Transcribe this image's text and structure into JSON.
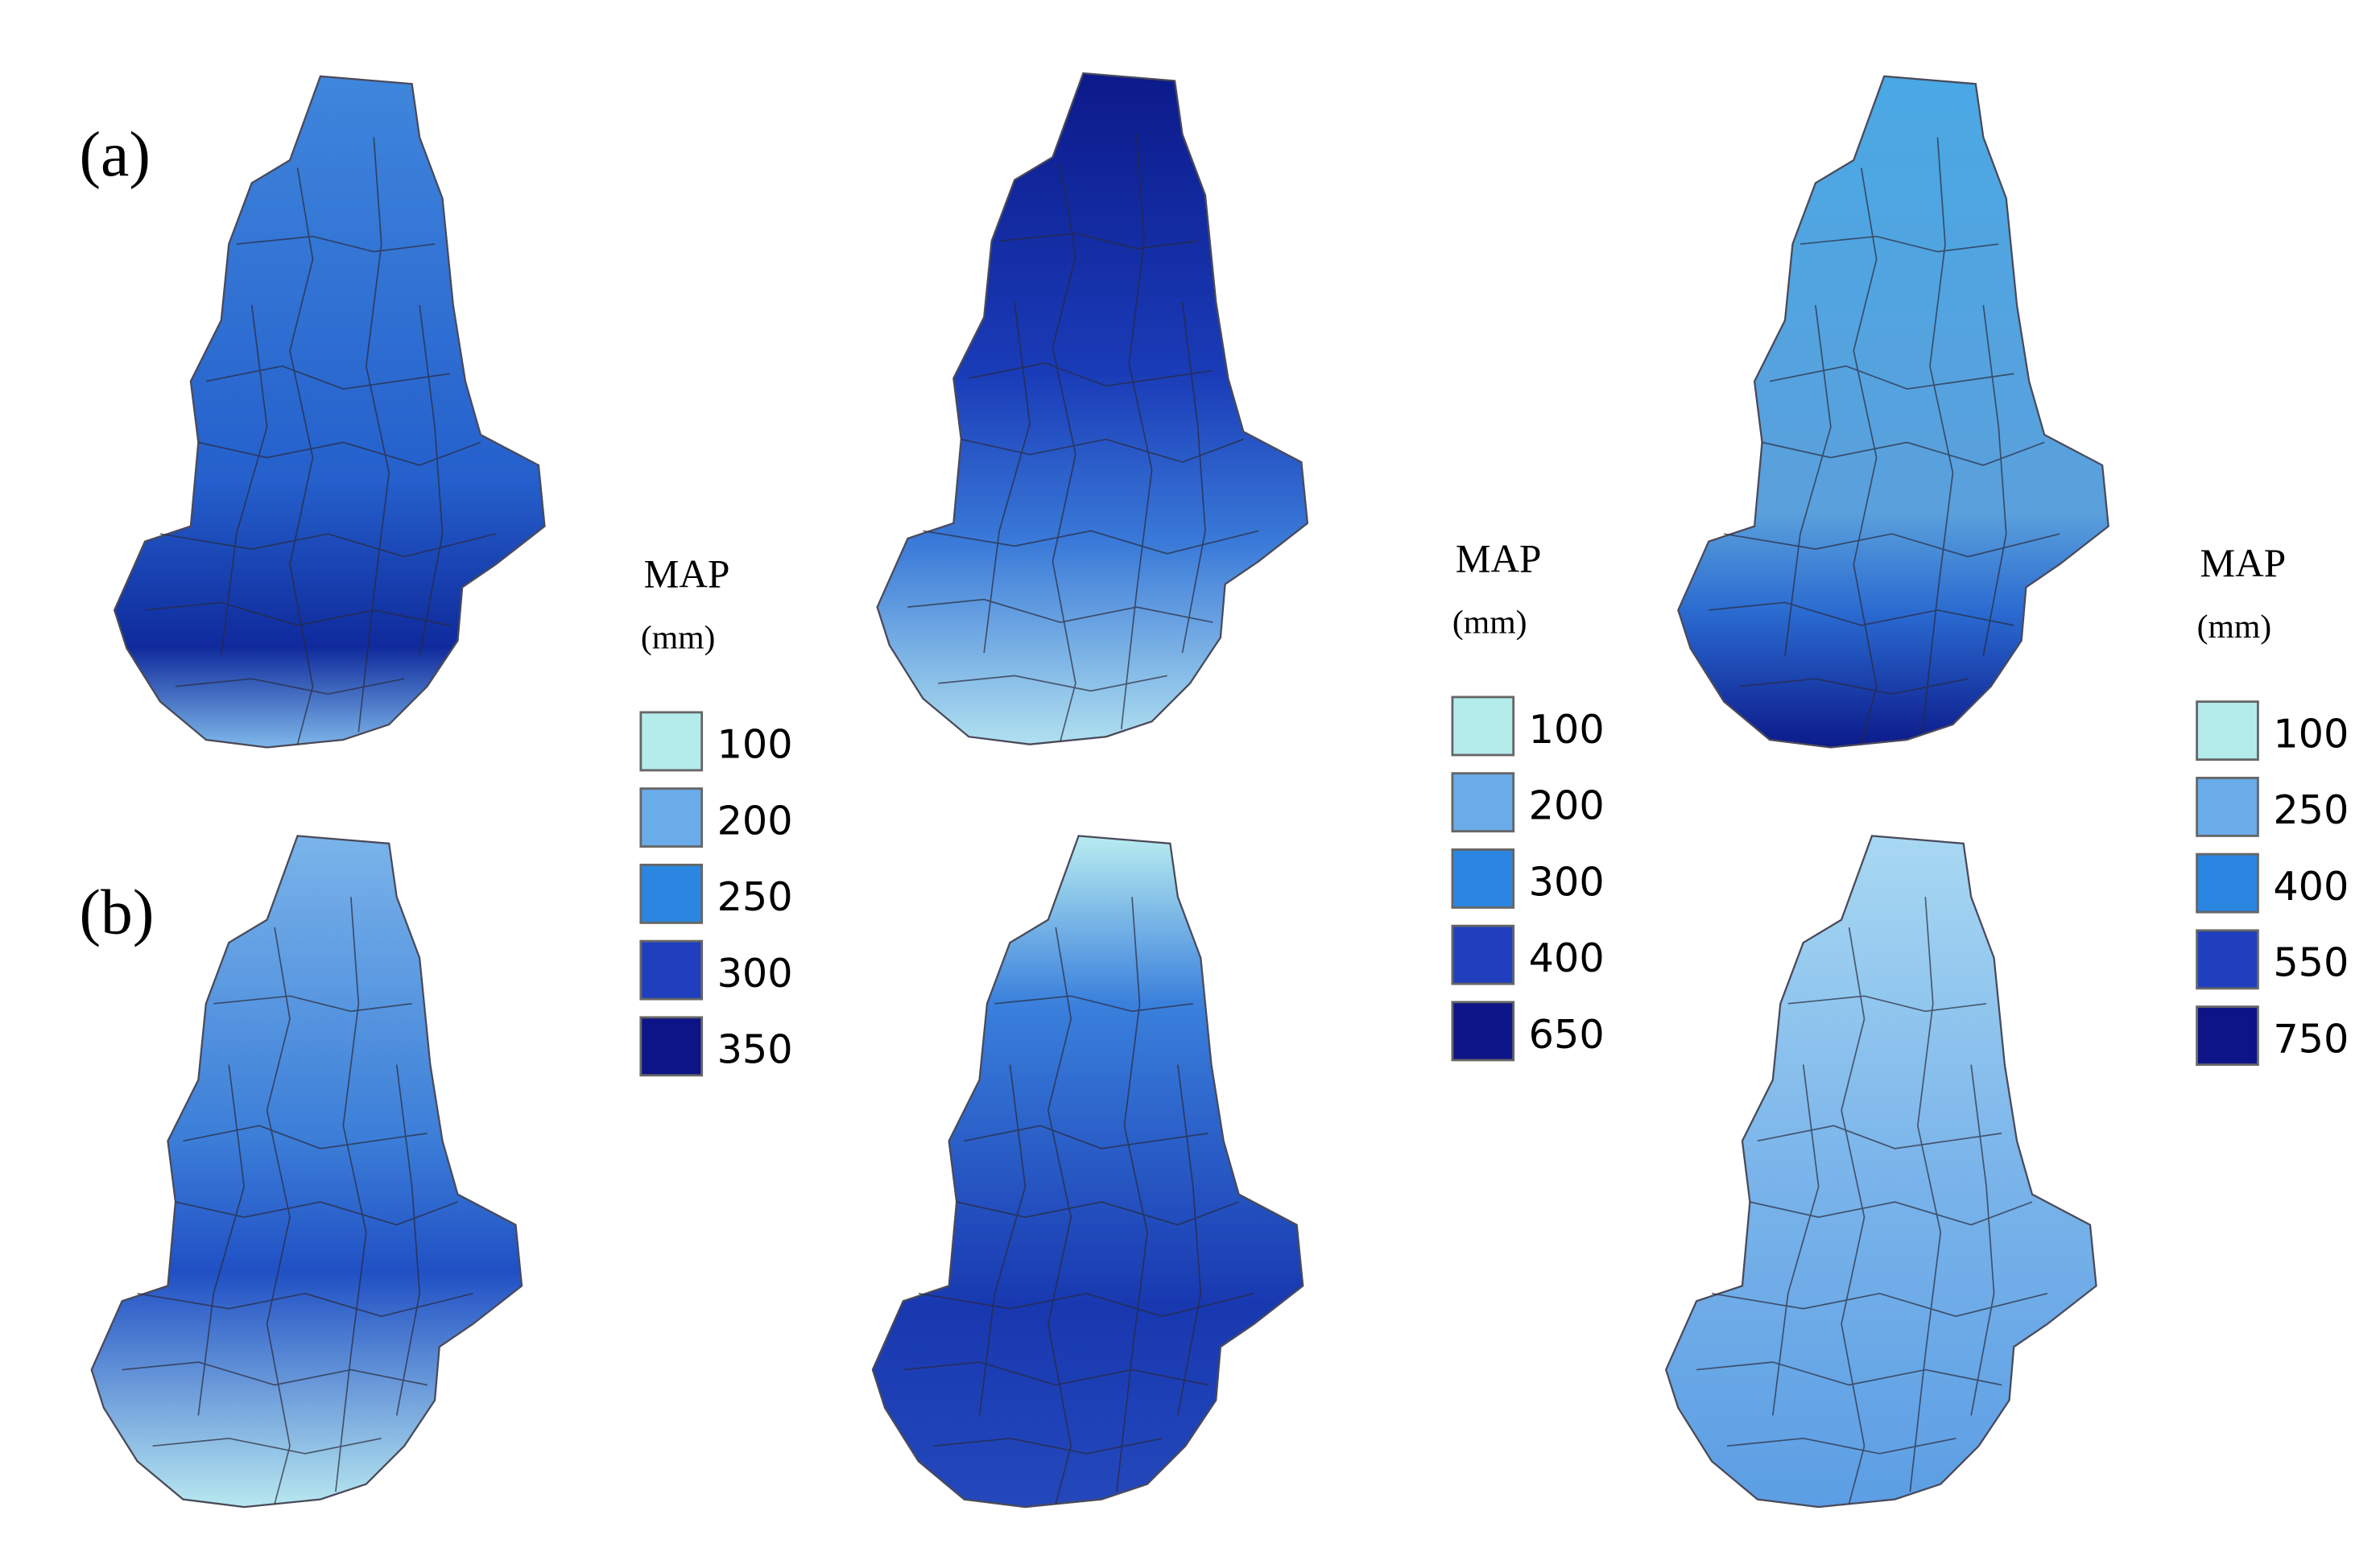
{
  "panels": [
    "(a)",
    "(b)"
  ],
  "legends": [
    {
      "title": "MAP",
      "unit": "(mm)",
      "items": [
        {
          "label": "100",
          "color": "#b4ecec"
        },
        {
          "label": "200",
          "color": "#6aabea"
        },
        {
          "label": "250",
          "color": "#2a86e0"
        },
        {
          "label": "300",
          "color": "#1f3fbf"
        },
        {
          "label": "350",
          "color": "#0c1487"
        }
      ]
    },
    {
      "title": "MAP",
      "unit": "(mm)",
      "items": [
        {
          "label": "100",
          "color": "#b4ecec"
        },
        {
          "label": "200",
          "color": "#6aabea"
        },
        {
          "label": "300",
          "color": "#2a86e0"
        },
        {
          "label": "400",
          "color": "#1f3fbf"
        },
        {
          "label": "650",
          "color": "#0c1487"
        }
      ]
    },
    {
      "title": "MAP",
      "unit": "(mm)",
      "items": [
        {
          "label": "100",
          "color": "#b4ecec"
        },
        {
          "label": "250",
          "color": "#6aabea"
        },
        {
          "label": "400",
          "color": "#2a86e0"
        },
        {
          "label": "550",
          "color": "#1f3fbf"
        },
        {
          "label": "750",
          "color": "#0c1487"
        }
      ]
    }
  ]
}
